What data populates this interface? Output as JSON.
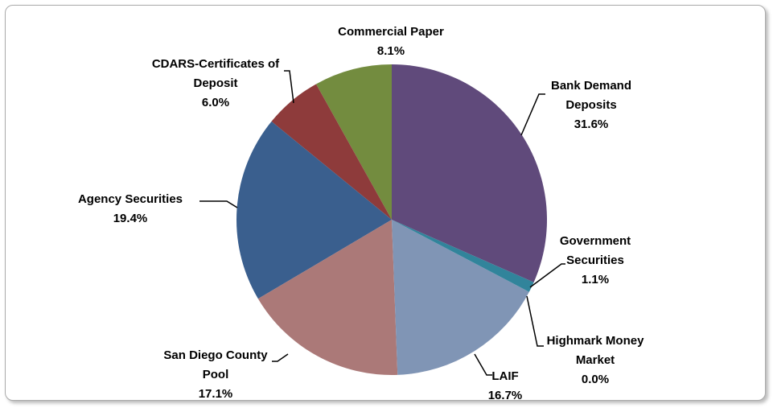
{
  "chart_data": {
    "type": "pie",
    "categories": [
      "Bank Demand Deposits",
      "Government Securities",
      "Highmark Money Market",
      "LAIF",
      "San Diego County Pool",
      "Agency Securities",
      "CDARS-Certificates of Deposit",
      "Commercial Paper"
    ],
    "values": [
      31.6,
      1.1,
      0.0,
      16.7,
      17.1,
      19.4,
      6.0,
      8.1
    ],
    "value_labels": [
      "31.6%",
      "1.1%",
      "0.0%",
      "16.7%",
      "17.1%",
      "19.4%",
      "6.0%",
      "8.1%"
    ],
    "colors": [
      "#604a7b",
      "#31849b",
      "#4f81bd",
      "#8095b5",
      "#ab7978",
      "#3a5f8e",
      "#8e3b3b",
      "#738c3f"
    ]
  }
}
